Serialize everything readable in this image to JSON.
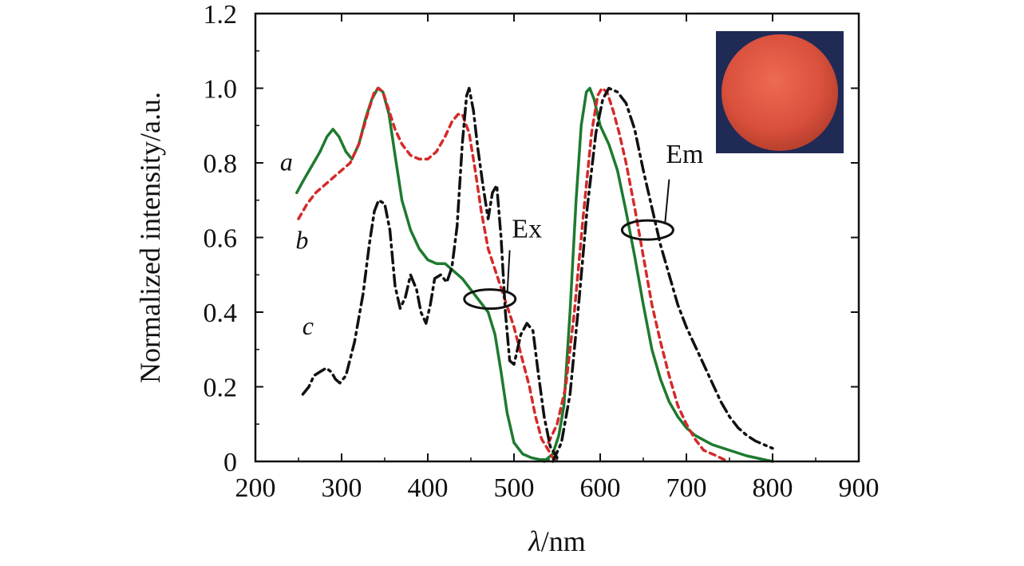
{
  "chart_data": {
    "type": "line",
    "title": "",
    "xlabel": {
      "symbol": "λ",
      "unit": "/nm"
    },
    "ylabel": "Normalized intensity/a.u.",
    "xlim": [
      200,
      900
    ],
    "ylim": [
      0,
      1.2
    ],
    "xticks": [
      200,
      300,
      400,
      500,
      600,
      700,
      800,
      900
    ],
    "xtick_labels": [
      "200",
      "300",
      "400",
      "500",
      "600",
      "700",
      "800",
      "900"
    ],
    "yticks": [
      0,
      0.2,
      0.4,
      0.6,
      0.8,
      1.0,
      1.2
    ],
    "ytick_labels": [
      "0",
      "0.2",
      "0.4",
      "0.6",
      "0.8",
      "1.0",
      "1.2"
    ],
    "grid": false,
    "annotations": [
      {
        "text": "Ex",
        "target": "excitation curves"
      },
      {
        "text": "Em",
        "target": "emission curves"
      }
    ],
    "inset": "photo of orange-red phosphor powder disc on dark blue background",
    "series": [
      {
        "name": "a",
        "color": "#1e7a2e",
        "dash": "solid",
        "segments": [
          [
            [
              248,
              0.72
            ],
            [
              255,
              0.75
            ],
            [
              265,
              0.79
            ],
            [
              275,
              0.83
            ],
            [
              283,
              0.87
            ],
            [
              290,
              0.89
            ],
            [
              297,
              0.87
            ],
            [
              305,
              0.83
            ],
            [
              312,
              0.81
            ],
            [
              320,
              0.85
            ],
            [
              328,
              0.92
            ],
            [
              335,
              0.97
            ],
            [
              342,
              1.0
            ],
            [
              348,
              0.99
            ],
            [
              355,
              0.93
            ],
            [
              362,
              0.82
            ],
            [
              370,
              0.7
            ],
            [
              380,
              0.62
            ],
            [
              390,
              0.57
            ],
            [
              400,
              0.54
            ],
            [
              410,
              0.53
            ],
            [
              420,
              0.53
            ],
            [
              430,
              0.51
            ],
            [
              440,
              0.49
            ],
            [
              450,
              0.46
            ],
            [
              460,
              0.43
            ],
            [
              470,
              0.4
            ],
            [
              478,
              0.34
            ],
            [
              485,
              0.24
            ],
            [
              492,
              0.13
            ],
            [
              500,
              0.05
            ],
            [
              510,
              0.02
            ],
            [
              520,
              0.01
            ],
            [
              530,
              0.005
            ],
            [
              540,
              0.005
            ]
          ],
          [
            [
              535,
              0.0
            ],
            [
              545,
              0.02
            ],
            [
              552,
              0.07
            ],
            [
              558,
              0.15
            ],
            [
              565,
              0.4
            ],
            [
              572,
              0.7
            ],
            [
              578,
              0.9
            ],
            [
              584,
              0.99
            ],
            [
              588,
              1.0
            ],
            [
              593,
              0.97
            ],
            [
              600,
              0.9
            ],
            [
              610,
              0.85
            ],
            [
              620,
              0.78
            ],
            [
              630,
              0.67
            ],
            [
              640,
              0.55
            ],
            [
              650,
              0.42
            ],
            [
              660,
              0.3
            ],
            [
              670,
              0.22
            ],
            [
              680,
              0.16
            ],
            [
              690,
              0.12
            ],
            [
              700,
              0.09
            ],
            [
              710,
              0.07
            ],
            [
              730,
              0.045
            ],
            [
              750,
              0.03
            ],
            [
              770,
              0.015
            ],
            [
              790,
              0.005
            ],
            [
              800,
              0.0
            ]
          ]
        ]
      },
      {
        "name": "b",
        "color": "#d42a2a",
        "dash": "dashed",
        "segments": [
          [
            [
              250,
              0.65
            ],
            [
              260,
              0.69
            ],
            [
              270,
              0.72
            ],
            [
              280,
              0.74
            ],
            [
              290,
              0.76
            ],
            [
              300,
              0.78
            ],
            [
              310,
              0.8
            ],
            [
              320,
              0.85
            ],
            [
              330,
              0.93
            ],
            [
              338,
              0.99
            ],
            [
              343,
              1.0
            ],
            [
              348,
              0.99
            ],
            [
              355,
              0.94
            ],
            [
              362,
              0.89
            ],
            [
              370,
              0.85
            ],
            [
              380,
              0.82
            ],
            [
              390,
              0.81
            ],
            [
              400,
              0.81
            ],
            [
              410,
              0.83
            ],
            [
              420,
              0.87
            ],
            [
              428,
              0.91
            ],
            [
              435,
              0.93
            ],
            [
              440,
              0.93
            ],
            [
              448,
              0.88
            ],
            [
              455,
              0.78
            ],
            [
              462,
              0.67
            ],
            [
              470,
              0.57
            ],
            [
              480,
              0.5
            ],
            [
              490,
              0.43
            ],
            [
              500,
              0.36
            ],
            [
              510,
              0.27
            ],
            [
              518,
              0.2
            ],
            [
              525,
              0.12
            ],
            [
              532,
              0.06
            ],
            [
              540,
              0.03
            ],
            [
              545,
              0.01
            ],
            [
              550,
              0.0
            ]
          ],
          [
            [
              540,
              0.05
            ],
            [
              550,
              0.1
            ],
            [
              560,
              0.2
            ],
            [
              570,
              0.4
            ],
            [
              580,
              0.65
            ],
            [
              590,
              0.88
            ],
            [
              597,
              0.98
            ],
            [
              602,
              1.0
            ],
            [
              608,
              0.99
            ],
            [
              615,
              0.94
            ],
            [
              622,
              0.88
            ],
            [
              630,
              0.8
            ],
            [
              640,
              0.68
            ],
            [
              650,
              0.55
            ],
            [
              660,
              0.42
            ],
            [
              670,
              0.32
            ],
            [
              680,
              0.23
            ],
            [
              690,
              0.15
            ],
            [
              700,
              0.1
            ],
            [
              710,
              0.06
            ],
            [
              720,
              0.03
            ],
            [
              735,
              0.015
            ],
            [
              748,
              0.0
            ]
          ]
        ]
      },
      {
        "name": "c",
        "color": "#111111",
        "dash": "dash-dot",
        "segments": [
          [
            [
              255,
              0.18
            ],
            [
              262,
              0.2
            ],
            [
              268,
              0.23
            ],
            [
              275,
              0.24
            ],
            [
              282,
              0.25
            ],
            [
              288,
              0.24
            ],
            [
              293,
              0.22
            ],
            [
              298,
              0.21
            ],
            [
              305,
              0.23
            ],
            [
              315,
              0.32
            ],
            [
              325,
              0.45
            ],
            [
              332,
              0.58
            ],
            [
              338,
              0.67
            ],
            [
              343,
              0.7
            ],
            [
              350,
              0.69
            ],
            [
              356,
              0.62
            ],
            [
              362,
              0.47
            ],
            [
              368,
              0.41
            ],
            [
              374,
              0.44
            ],
            [
              380,
              0.5
            ],
            [
              387,
              0.46
            ],
            [
              392,
              0.4
            ],
            [
              398,
              0.37
            ],
            [
              403,
              0.42
            ],
            [
              408,
              0.49
            ],
            [
              415,
              0.5
            ],
            [
              422,
              0.48
            ],
            [
              428,
              0.52
            ],
            [
              434,
              0.63
            ],
            [
              440,
              0.85
            ],
            [
              445,
              0.98
            ],
            [
              448,
              1.0
            ],
            [
              453,
              0.94
            ],
            [
              458,
              0.84
            ],
            [
              464,
              0.74
            ],
            [
              470,
              0.65
            ],
            [
              475,
              0.72
            ],
            [
              480,
              0.74
            ],
            [
              485,
              0.6
            ],
            [
              490,
              0.4
            ],
            [
              495,
              0.27
            ],
            [
              500,
              0.26
            ],
            [
              508,
              0.34
            ],
            [
              515,
              0.37
            ],
            [
              522,
              0.35
            ],
            [
              528,
              0.24
            ],
            [
              535,
              0.12
            ],
            [
              542,
              0.04
            ],
            [
              550,
              0.01
            ]
          ],
          [
            [
              545,
              0.0
            ],
            [
              555,
              0.05
            ],
            [
              565,
              0.18
            ],
            [
              575,
              0.42
            ],
            [
              585,
              0.68
            ],
            [
              595,
              0.88
            ],
            [
              603,
              0.97
            ],
            [
              610,
              1.0
            ],
            [
              620,
              0.99
            ],
            [
              630,
              0.96
            ],
            [
              640,
              0.89
            ],
            [
              650,
              0.78
            ],
            [
              660,
              0.68
            ],
            [
              670,
              0.58
            ],
            [
              680,
              0.5
            ],
            [
              690,
              0.42
            ],
            [
              700,
              0.36
            ],
            [
              710,
              0.31
            ],
            [
              720,
              0.26
            ],
            [
              730,
              0.21
            ],
            [
              740,
              0.16
            ],
            [
              750,
              0.12
            ],
            [
              760,
              0.09
            ],
            [
              770,
              0.07
            ],
            [
              780,
              0.055
            ],
            [
              790,
              0.045
            ],
            [
              800,
              0.035
            ]
          ]
        ]
      }
    ]
  }
}
